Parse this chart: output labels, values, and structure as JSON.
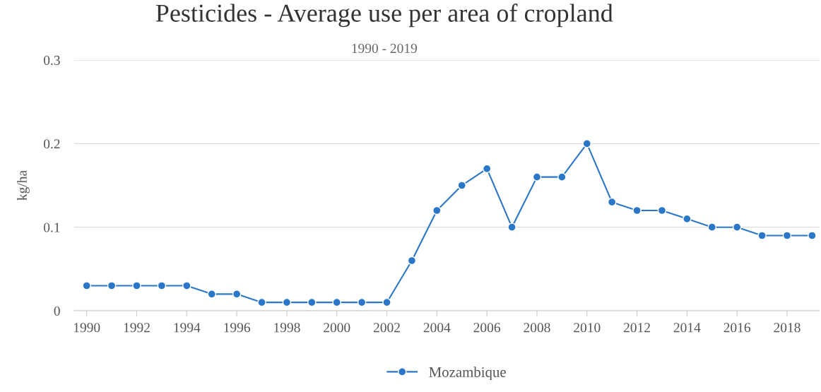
{
  "chart_data": {
    "type": "line",
    "title": "Pesticides - Average use per area of cropland",
    "subtitle": "1990 - 2019",
    "ylabel": "kg/ha",
    "x": [
      1990,
      1991,
      1992,
      1993,
      1994,
      1995,
      1996,
      1997,
      1998,
      1999,
      2000,
      2001,
      2002,
      2003,
      2004,
      2005,
      2006,
      2007,
      2008,
      2009,
      2010,
      2011,
      2012,
      2013,
      2014,
      2015,
      2016,
      2017,
      2018,
      2019
    ],
    "series": [
      {
        "name": "Mozambique",
        "color": "#2a77c9",
        "values": [
          0.03,
          0.03,
          0.03,
          0.03,
          0.03,
          0.02,
          0.02,
          0.01,
          0.01,
          0.01,
          0.01,
          0.01,
          0.01,
          0.06,
          0.12,
          0.15,
          0.17,
          0.1,
          0.16,
          0.16,
          0.2,
          0.13,
          0.12,
          0.12,
          0.11,
          0.1,
          0.1,
          0.09,
          0.09,
          0.09
        ]
      }
    ],
    "xlim": [
      1989.5,
      2019.3
    ],
    "xticks": [
      1990,
      1992,
      1994,
      1996,
      1998,
      2000,
      2002,
      2004,
      2006,
      2008,
      2010,
      2012,
      2014,
      2016,
      2018
    ],
    "ylim": [
      0,
      0.3
    ],
    "yticks": [
      0,
      0.1,
      0.2,
      0.3
    ],
    "grid": "y",
    "legend": "bottom",
    "marker": "circle",
    "line_style": "solid"
  }
}
